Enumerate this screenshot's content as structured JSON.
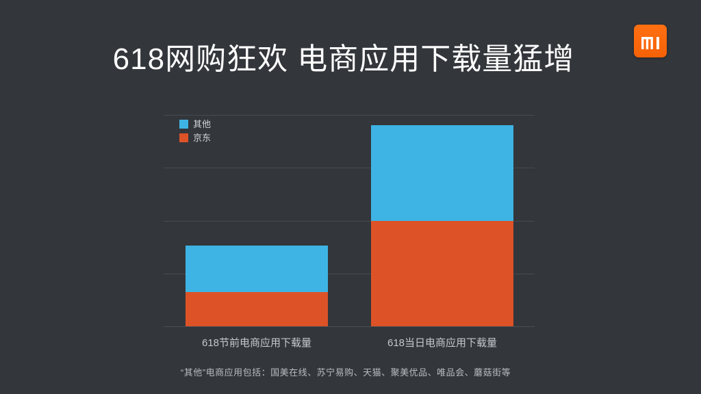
{
  "slide": {
    "title": "618网购狂欢 电商应用下载量猛增",
    "footnote": "“其他”电商应用包括：国美在线、苏宁易购、天猫、聚美优品、唯品会、蘑菇街等",
    "logo": "xiaomi-mi-logo"
  },
  "colors": {
    "background": "#33363b",
    "gridline": "#474a4e",
    "series_blue": "#3eb4e4",
    "series_orange": "#dd5327",
    "logo_orange": "#ff6709",
    "title_text": "#fdfdfd",
    "legend_text": "#d3d5d7",
    "axis_text": "#c6c9cb",
    "footnote_text": "#b9bcbe"
  },
  "legend": {
    "items": [
      {
        "label": "其他",
        "color": "#3eb4e4"
      },
      {
        "label": "京东",
        "color": "#dd5327"
      }
    ]
  },
  "chart_data": {
    "type": "bar",
    "stacked": true,
    "title": "618网购狂欢 电商应用下载量猛增",
    "categories": [
      "618节前电商应用下载量",
      "618当日电商应用下载量"
    ],
    "series": [
      {
        "name": "京东",
        "color": "#dd5327",
        "values": [
          0.65,
          2.0
        ]
      },
      {
        "name": "其他",
        "color": "#3eb4e4",
        "values": [
          0.88,
          1.81
        ]
      }
    ],
    "xlabel": "",
    "ylabel": "",
    "ylim": [
      0,
      4
    ],
    "value_axis_labels": false,
    "gridline_count": 5,
    "grid": true,
    "legend_position": "top-left"
  }
}
